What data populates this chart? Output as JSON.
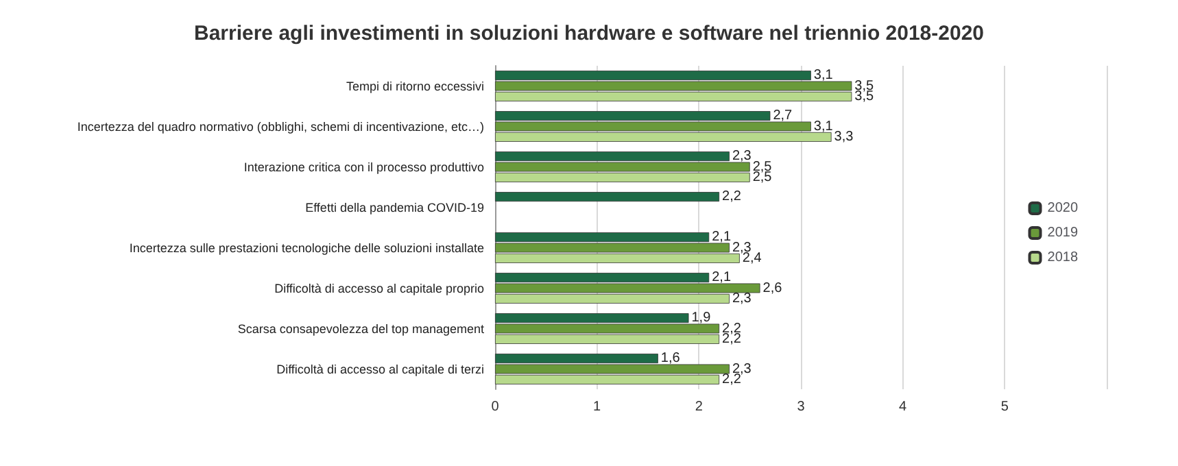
{
  "chart_data": {
    "type": "bar",
    "orientation": "horizontal",
    "title": "Barriere agli investimenti in soluzioni hardware e software nel triennio 2018-2020",
    "categories": [
      "Tempi di ritorno eccessivi",
      "Incertezza del quadro normativo (obblighi, schemi di incentivazione, etc…)",
      "Interazione critica con il processo produttivo",
      "Effetti della pandemia COVID-19",
      "Incertezza sulle prestazioni tecnologiche delle soluzioni installate",
      "Difficoltà di accesso al capitale proprio",
      "Scarsa consapevolezza del top management",
      "Difficoltà di accesso al capitale di terzi"
    ],
    "series": [
      {
        "name": "2020",
        "color": "#1e6b47",
        "values": [
          3.1,
          2.7,
          2.3,
          2.2,
          2.1,
          2.1,
          1.9,
          1.6
        ],
        "value_labels": [
          "3,1",
          "2,7",
          "2,3",
          "2,2",
          "2,1",
          "2,1",
          "1,9",
          "1,6"
        ]
      },
      {
        "name": "2019",
        "color": "#6a9a3a",
        "values": [
          3.5,
          3.1,
          2.5,
          null,
          2.3,
          2.6,
          2.2,
          2.3
        ],
        "value_labels": [
          "3,5",
          "3,1",
          "2,5",
          null,
          "2,3",
          "2,6",
          "2,2",
          "2,3"
        ]
      },
      {
        "name": "2018",
        "color": "#b7d98c",
        "values": [
          3.5,
          3.3,
          2.5,
          null,
          2.4,
          2.3,
          2.2,
          2.2
        ],
        "value_labels": [
          "3,5",
          "3,3",
          "2,5",
          null,
          "2,4",
          "2,3",
          "2,2",
          "2,2"
        ]
      }
    ],
    "xlim": [
      0,
      6
    ],
    "xticks": [
      0,
      1,
      2,
      3,
      4,
      5,
      {
        "value": 6,
        "label": null
      }
    ],
    "grid": "x",
    "legend": "right"
  }
}
